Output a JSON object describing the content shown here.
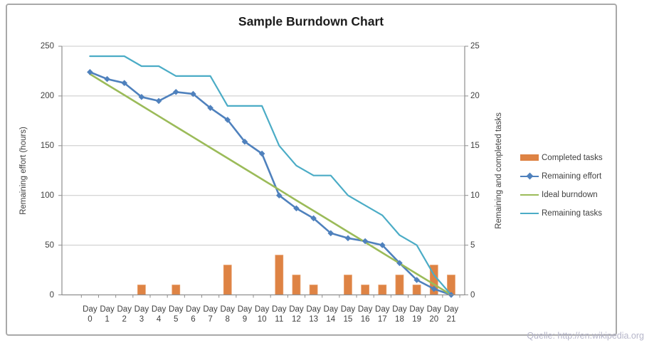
{
  "title": "Sample Burndown Chart",
  "watermark": "Quelle: http://en.wikipedia.org",
  "chart_data": {
    "type": "combo",
    "categories": [
      "Day 0",
      "Day 1",
      "Day 2",
      "Day 3",
      "Day 4",
      "Day 5",
      "Day 6",
      "Day 7",
      "Day 8",
      "Day 9",
      "Day 10",
      "Day 11",
      "Day 12",
      "Day 13",
      "Day 14",
      "Day 15",
      "Day 16",
      "Day 17",
      "Day 18",
      "Day 19",
      "Day 20",
      "Day 21"
    ],
    "left_axis": {
      "label": "Remaining effort (hours)",
      "min": 0,
      "max": 250,
      "step": 50,
      "ticks": [
        0,
        50,
        100,
        150,
        200,
        250
      ]
    },
    "right_axis": {
      "label": "Remaining and completed tasks",
      "min": 0,
      "max": 25,
      "step": 5,
      "ticks": [
        0,
        5,
        10,
        15,
        20,
        25
      ]
    },
    "series": [
      {
        "name": "Completed tasks",
        "type": "bar",
        "axis": "right",
        "color": "#DE8344",
        "values": [
          0,
          0,
          0,
          1,
          0,
          1,
          0,
          0,
          3,
          0,
          0,
          4,
          2,
          1,
          0,
          2,
          1,
          1,
          2,
          1,
          3,
          2
        ]
      },
      {
        "name": "Remaining effort",
        "type": "line",
        "marker": "diamond",
        "axis": "left",
        "color": "#4F81BD",
        "values": [
          224,
          217,
          213,
          199,
          195,
          204,
          202,
          188,
          176,
          154,
          142,
          100,
          87,
          77,
          62,
          57,
          54,
          50,
          32,
          15,
          6,
          0
        ]
      },
      {
        "name": "Ideal burndown",
        "type": "line",
        "axis": "left",
        "color": "#9BBB59",
        "values": [
          222,
          211.4,
          200.9,
          190.3,
          179.7,
          169.1,
          158.6,
          148,
          137.4,
          126.9,
          116.3,
          105.7,
          95.1,
          84.6,
          74,
          63.4,
          52.9,
          42.3,
          31.7,
          21.1,
          10.6,
          0
        ]
      },
      {
        "name": "Remaining tasks",
        "type": "line",
        "axis": "right",
        "color": "#4BACC6",
        "values": [
          24,
          24,
          24,
          23,
          23,
          22,
          22,
          22,
          19,
          19,
          19,
          15,
          13,
          12,
          12,
          10,
          9,
          8,
          6,
          5,
          2,
          0
        ]
      }
    ],
    "grid": true,
    "legend_position": "right",
    "styles": {
      "grid_color": "#C8C8C8",
      "axis_color": "#8E8E8E",
      "text_color": "#3F3F3F",
      "title_color": "#1C1C1C",
      "watermark_color": "#B5B5C9",
      "border_color": "#A9A9A9",
      "background": "#FFFFFF"
    }
  }
}
